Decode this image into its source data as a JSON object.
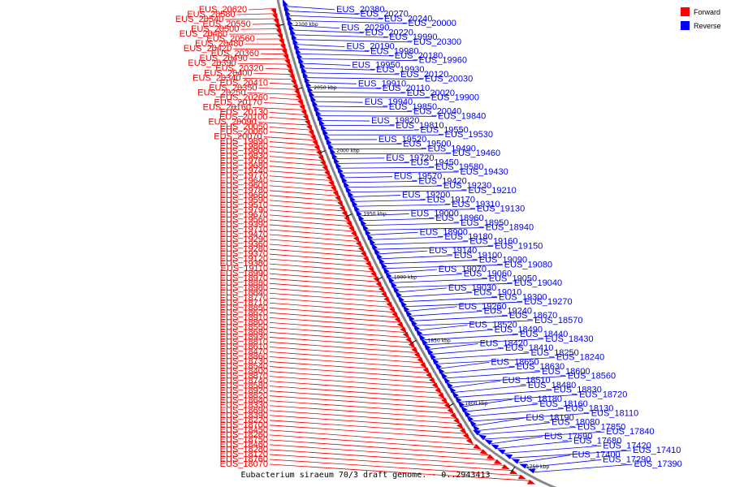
{
  "caption": "Eubacterium siraeum 70/3 draft genome. - 0..2943413",
  "legend": {
    "items": [
      {
        "label": "Forward",
        "color": "#ff0000"
      },
      {
        "label": "Reverse",
        "color": "#0000ff"
      }
    ]
  },
  "colors": {
    "forward": "#ee0000",
    "reverse": "#0000ee",
    "backbone": "#888888"
  },
  "scale_marks": [
    "2100 kbp",
    "2050 kbp",
    "2000 kbp",
    "1950 kbp",
    "1900 kbp",
    "1850 kbp",
    "1800 kbp",
    "1750 kbp"
  ],
  "forward_genes": [
    "EUS_20620",
    "EUS_20580",
    "EUS_20540",
    "EUS_20550",
    "EUS_20500",
    "EUS_20460",
    "EUS_20560",
    "EUS_20480",
    "EUS_20420",
    "EUS_20360",
    "EUS_20490",
    "EUS_20390",
    "EUS_20320",
    "EUS_20400",
    "EUS_20340",
    "EUS_20410",
    "EUS_20350",
    "EUS_20250",
    "EUS_20260",
    "EUS_20170",
    "EUS_20160",
    "EUS_20130",
    "EUS_20100",
    "EUS_20090",
    "EUS_20050",
    "EUS_20060",
    "EUS_20070",
    "EUS_19890",
    "EUS_19860",
    "EUS_19800",
    "EUS_19830",
    "EUS_19760",
    "EUS_19680",
    "EUS_19740",
    "EUS_19770",
    "EUS_19640",
    "EUS_19600",
    "EUS_19780",
    "EUS_19660",
    "EUS_19590",
    "EUS_19510",
    "EUS_19790",
    "EUS_19670",
    "EUS_19560",
    "EUS_19390",
    "EUS_19710",
    "EUS_19470",
    "EUS_19290",
    "EUS_19360",
    "EUS_19280",
    "EUS_19370",
    "EUS_19120",
    "EUS_19380",
    "EUS_19110",
    "EUS_18990",
    "EUS_18970",
    "EUS_18880",
    "EUS_18980",
    "EUS_18840",
    "EUS_18770",
    "EUS_18710",
    "EUS_18850",
    "EUS_18620",
    "EUS_18910",
    "EUS_18800",
    "EUS_18550",
    "EUS_18680",
    "EUS_18930",
    "EUS_18810",
    "EUS_18610",
    "EUS_18470",
    "EUS_18860",
    "EUS_18730",
    "EUS_18540",
    "EUS_18400",
    "EUS_18870",
    "EUS_18740",
    "EUS_18580",
    "EUS_18920",
    "EUS_18820",
    "EUS_18640",
    "EUS_18330",
    "EUS_18690",
    "EUS_18390",
    "EUS_18220",
    "EUS_18700",
    "EUS_18450",
    "EUS_18260",
    "EUS_18750",
    "EUS_18460",
    "EUS_18280",
    "EUS_18120",
    "EUS_18760",
    "EUS_18070"
  ],
  "reverse_genes": [
    "EUS_20380",
    "EUS_20270",
    "EUS_20240",
    "EUS_20000",
    "EUS_20290",
    "EUS_20220",
    "EUS_19990",
    "EUS_20300",
    "EUS_20190",
    "EUS_19980",
    "EUS_20180",
    "EUS_19960",
    "EUS_19950",
    "EUS_19930",
    "EUS_20120",
    "EUS_20030",
    "EUS_19910",
    "EUS_20110",
    "EUS_20020",
    "EUS_19900",
    "EUS_19940",
    "EUS_19850",
    "EUS_20040",
    "EUS_19840",
    "EUS_19820",
    "EUS_19810",
    "EUS_19550",
    "EUS_19530",
    "EUS_19520",
    "EUS_19500",
    "EUS_19490",
    "EUS_19460",
    "EUS_19720",
    "EUS_19450",
    "EUS_19580",
    "EUS_19430",
    "EUS_19570",
    "EUS_19420",
    "EUS_19230",
    "EUS_19210",
    "EUS_19200",
    "EUS_19170",
    "EUS_19310",
    "EUS_19130",
    "EUS_19000",
    "EUS_18960",
    "EUS_18950",
    "EUS_18940",
    "EUS_18900",
    "EUS_19180",
    "EUS_19160",
    "EUS_19150",
    "EUS_19140",
    "EUS_19100",
    "EUS_19090",
    "EUS_19080",
    "EUS_19070",
    "EUS_19060",
    "EUS_19050",
    "EUS_19040",
    "EUS_19030",
    "EUS_19010",
    "EUS_19300",
    "EUS_19270",
    "EUS_19260",
    "EUS_19240",
    "EUS_18670",
    "EUS_18570",
    "EUS_18520",
    "EUS_18490",
    "EUS_18440",
    "EUS_18430",
    "EUS_18420",
    "EUS_18410",
    "EUS_18250",
    "EUS_18240",
    "EUS_18650",
    "EUS_18630",
    "EUS_18600",
    "EUS_18560",
    "EUS_18510",
    "EUS_18480",
    "EUS_18830",
    "EUS_18720",
    "EUS_18180",
    "EUS_18160",
    "EUS_18130",
    "EUS_18110",
    "EUS_18190",
    "EUS_18080",
    "EUS_17850",
    "EUS_17840",
    "EUS_17690",
    "EUS_17680",
    "EUS_17420",
    "EUS_17410",
    "EUS_17400",
    "EUS_17290",
    "EUS_17390"
  ]
}
